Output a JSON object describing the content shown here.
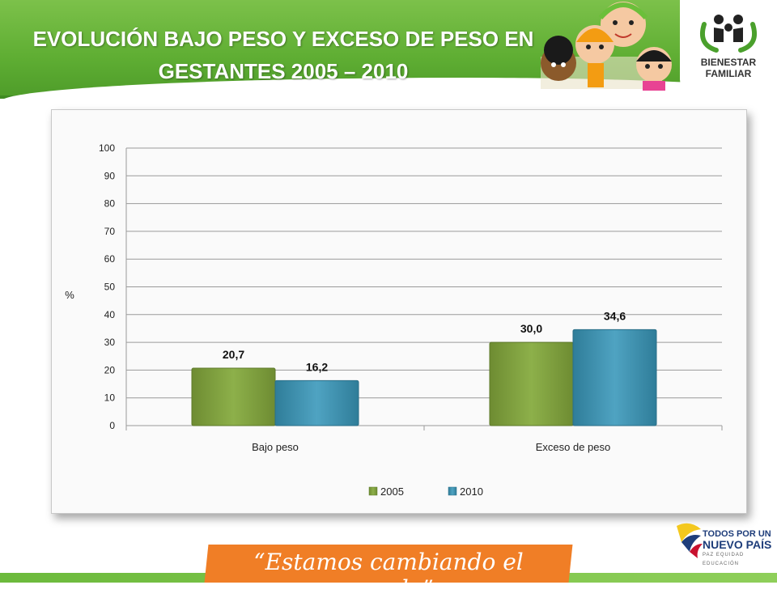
{
  "header": {
    "title_line1": "EVOLUCIÓN BAJO PESO Y EXCESO DE PESO EN",
    "title_line2": "GESTANTES 2005 – 2010",
    "logo_line1": "BIENESTAR",
    "logo_line2": "FAMILIAR",
    "brand_color": "#5fae33"
  },
  "footer": {
    "slogan": "“Estamos cambiando el mundo”",
    "gov_line1": "TODOS POR UN",
    "gov_line2": "NUEVO PAÍS",
    "gov_line3": "PAZ  EQUIDAD  EDUCACIÓN",
    "accent_color": "#f07e26"
  },
  "chart_data": {
    "type": "bar",
    "title": "",
    "xlabel": "",
    "ylabel": "%",
    "ylim": [
      0,
      100
    ],
    "yticks": [
      0,
      10,
      20,
      30,
      40,
      50,
      60,
      70,
      80,
      90,
      100
    ],
    "grid": true,
    "legend_position": "bottom",
    "categories": [
      "Bajo peso",
      "Exceso de peso"
    ],
    "series": [
      {
        "name": "2005",
        "values": [
          20.7,
          30.0
        ],
        "labels": [
          "20,7",
          "30,0"
        ],
        "color": "#7a9a3a"
      },
      {
        "name": "2010",
        "values": [
          16.2,
          34.6
        ],
        "labels": [
          "16,2",
          "34,6"
        ],
        "color": "#3a8fae"
      }
    ]
  }
}
